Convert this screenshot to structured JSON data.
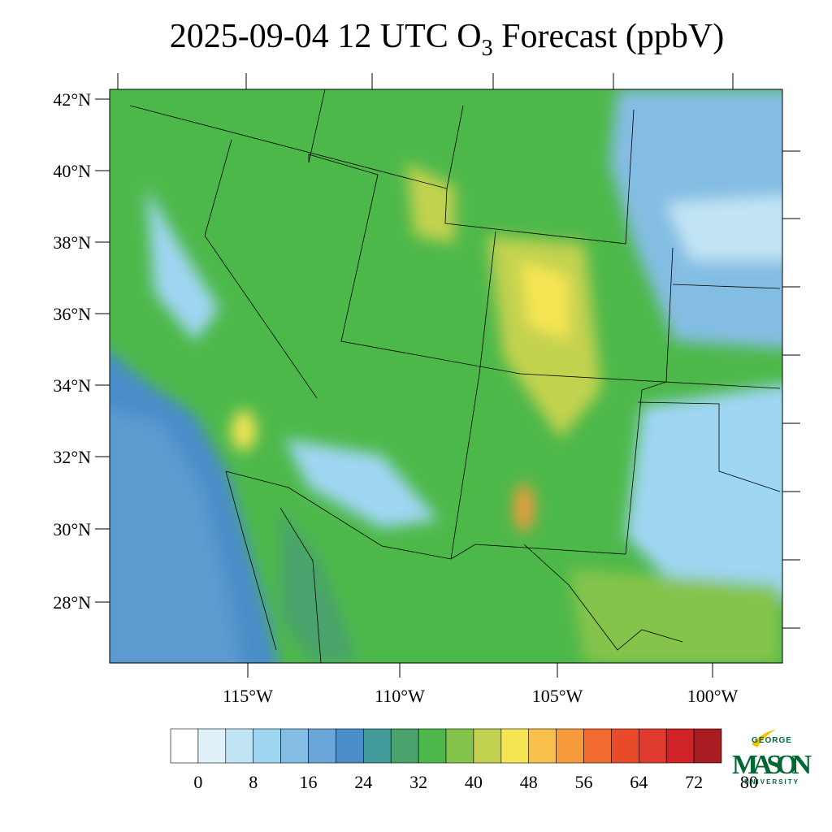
{
  "title": {
    "main": "2025-09-04 12 UTC O",
    "sub": "3",
    "rest": " Forecast (ppbV)"
  },
  "lat_labels": [
    "42°N",
    "40°N",
    "38°N",
    "36°N",
    "34°N",
    "32°N",
    "30°N",
    "28°N"
  ],
  "lon_labels": [
    "115°W",
    "110°W",
    "105°W",
    "100°W"
  ],
  "colorbar": {
    "colors": [
      "#ffffff",
      "#e1f1fa",
      "#c2e5f5",
      "#9fd6f2",
      "#84bde3",
      "#6ba6d8",
      "#4a8dc8",
      "#449b9c",
      "#4aa36c",
      "#4db84a",
      "#85c44c",
      "#c2d250",
      "#f6e553",
      "#f8bf4a",
      "#f79a3c",
      "#f26a2e",
      "#e84a2a",
      "#df3a2e",
      "#d02229",
      "#a81b20"
    ],
    "ticks": [
      0,
      8,
      16,
      24,
      32,
      40,
      48,
      56,
      64,
      72,
      80
    ]
  },
  "logo": {
    "top": "GEORGE",
    "main": "MASON",
    "bottom": "UNIVERSITY"
  }
}
